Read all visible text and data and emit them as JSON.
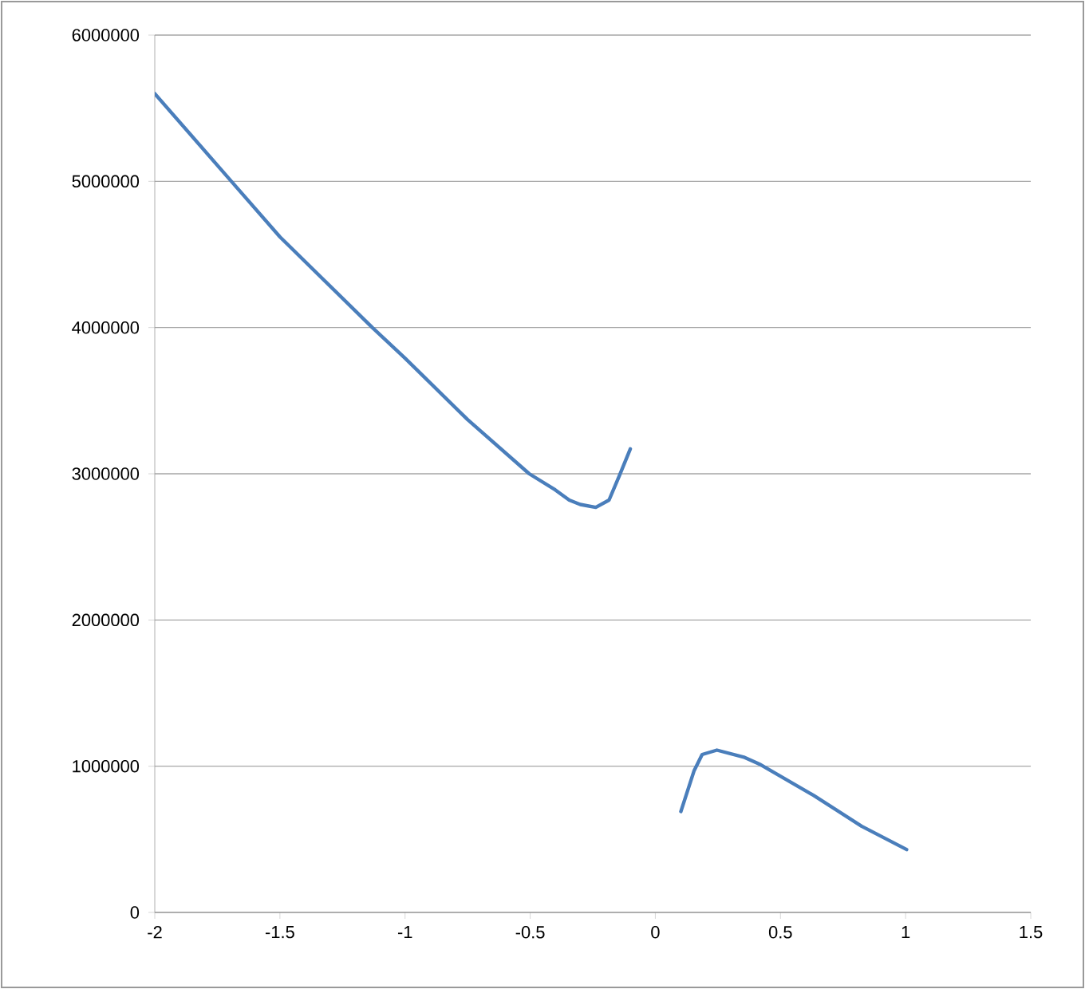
{
  "chart_data": {
    "type": "line",
    "xlim": [
      -2,
      1.5
    ],
    "ylim": [
      0,
      6000000
    ],
    "xticks": [
      -2,
      -1.5,
      -1,
      -0.5,
      0,
      0.5,
      1,
      1.5
    ],
    "yticks": [
      0,
      1000000,
      2000000,
      3000000,
      4000000,
      5000000,
      6000000
    ],
    "grid": "y",
    "marker": "none",
    "line_style": "solid",
    "series": [
      {
        "color": "#4a7ebb",
        "x": [
          -2,
          -1.694,
          -1.5,
          -1.131,
          -1,
          -0.75,
          -0.504,
          -0.4,
          -0.344,
          -0.3,
          -0.238,
          -0.185,
          -0.143,
          -0.1,
          null,
          0.102,
          0.155,
          0.187,
          0.246,
          0.357,
          0.421,
          0.633,
          0.824,
          1.004
        ],
        "values": [
          5600000,
          5000000,
          4620000,
          4000000,
          3790000,
          3370000,
          3000000,
          2890000,
          2820000,
          2790000,
          2770000,
          2820000,
          2990000,
          3170000,
          null,
          690000,
          970000,
          1080000,
          1110000,
          1060000,
          1010000,
          800000,
          590000,
          430000
        ]
      }
    ]
  }
}
